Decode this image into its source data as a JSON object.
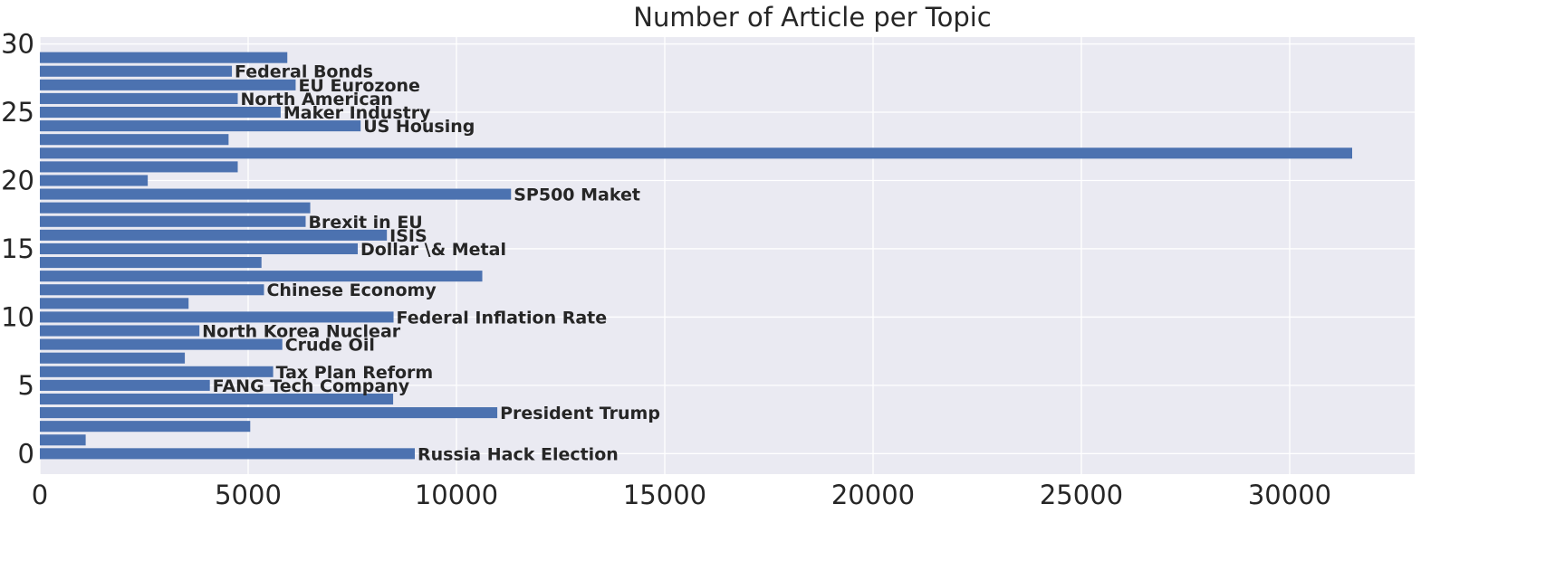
{
  "chart_data": {
    "type": "bar",
    "orientation": "horizontal",
    "title": "Number of Article per Topic",
    "xlabel": "",
    "ylabel": "",
    "xlim": [
      0,
      33000
    ],
    "ylim": [
      -1.5,
      30.5
    ],
    "x_ticks": [
      0,
      5000,
      10000,
      15000,
      20000,
      25000,
      30000
    ],
    "y_ticks": [
      0,
      5,
      10,
      15,
      20,
      25,
      30
    ],
    "grid": true,
    "legend": "none",
    "colors": {
      "bar": "#4c72b0",
      "background": "#eaeaf2",
      "grid": "#ffffff",
      "text": "#262626"
    },
    "bars": [
      {
        "y": 0,
        "value": 9000,
        "label": "Russia Hack Election"
      },
      {
        "y": 1,
        "value": 1100,
        "label": ""
      },
      {
        "y": 2,
        "value": 5050,
        "label": ""
      },
      {
        "y": 3,
        "value": 10980,
        "label": "President Trump"
      },
      {
        "y": 4,
        "value": 8480,
        "label": ""
      },
      {
        "y": 5,
        "value": 4080,
        "label": "FANG Tech Company"
      },
      {
        "y": 6,
        "value": 5600,
        "label": "Tax Plan Reform"
      },
      {
        "y": 7,
        "value": 3480,
        "label": ""
      },
      {
        "y": 8,
        "value": 5820,
        "label": "Crude Oil"
      },
      {
        "y": 9,
        "value": 3830,
        "label": "North Korea Nuclear"
      },
      {
        "y": 10,
        "value": 8490,
        "label": "Federal Inflation Rate"
      },
      {
        "y": 11,
        "value": 3570,
        "label": ""
      },
      {
        "y": 12,
        "value": 5380,
        "label": "Chinese Economy"
      },
      {
        "y": 13,
        "value": 10620,
        "label": ""
      },
      {
        "y": 14,
        "value": 5320,
        "label": ""
      },
      {
        "y": 15,
        "value": 7630,
        "label": "Dollar \\& Metal"
      },
      {
        "y": 16,
        "value": 8330,
        "label": "ISIS"
      },
      {
        "y": 17,
        "value": 6380,
        "label": "Brexit in EU"
      },
      {
        "y": 18,
        "value": 6490,
        "label": ""
      },
      {
        "y": 19,
        "value": 11310,
        "label": "SP500 Maket"
      },
      {
        "y": 20,
        "value": 2590,
        "label": ""
      },
      {
        "y": 21,
        "value": 4750,
        "label": ""
      },
      {
        "y": 22,
        "value": 31500,
        "label": ""
      },
      {
        "y": 23,
        "value": 4530,
        "label": ""
      },
      {
        "y": 24,
        "value": 7700,
        "label": "US Housing"
      },
      {
        "y": 25,
        "value": 5780,
        "label": "Maker Industry"
      },
      {
        "y": 26,
        "value": 4750,
        "label": "North American"
      },
      {
        "y": 27,
        "value": 6140,
        "label": "EU Eurozone"
      },
      {
        "y": 28,
        "value": 4610,
        "label": "Federal Bonds"
      },
      {
        "y": 29,
        "value": 5940,
        "label": ""
      }
    ]
  }
}
